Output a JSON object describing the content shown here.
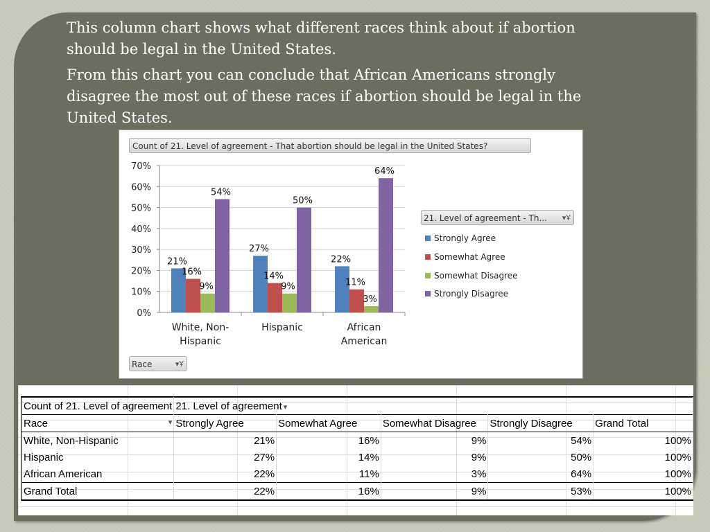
{
  "slide": {
    "paragraphs": [
      "This column chart shows what different races think about if abortion should be legal in the United States.",
      "From this chart you can conclude that African Americans strongly disagree the most out of these races if abortion should be legal in the United States."
    ]
  },
  "chart_data": {
    "type": "bar",
    "title": "Count of 21. Level of agreement - That abortion should be legal in the United States?",
    "legend_title": "21. Level of agreement - Th...",
    "axis_field_label": "Race",
    "categories": [
      "White, Non-Hispanic",
      "Hispanic",
      "African American"
    ],
    "category_lines": [
      [
        "White, Non-",
        "Hispanic"
      ],
      [
        "Hispanic"
      ],
      [
        "African",
        "American"
      ]
    ],
    "series": [
      {
        "name": "Strongly Agree",
        "values": [
          21,
          27,
          22
        ],
        "color": "#4f81bd"
      },
      {
        "name": "Somewhat Agree",
        "values": [
          16,
          14,
          11
        ],
        "color": "#c0504d"
      },
      {
        "name": "Somewhat Disagree",
        "values": [
          9,
          9,
          3
        ],
        "color": "#9bbb59"
      },
      {
        "name": "Strongly Disagree",
        "values": [
          54,
          50,
          64
        ],
        "color": "#8064a2"
      }
    ],
    "ylim": [
      0,
      70
    ],
    "y_ticks": [
      "0%",
      "10%",
      "20%",
      "30%",
      "40%",
      "50%",
      "60%",
      "70%"
    ],
    "value_suffix": "%",
    "grid": true,
    "legend_position": "right"
  },
  "pivot_table": {
    "filter_cell": "Count of 21. Level of agreement",
    "column_field": "21. Level of agreement",
    "row_field": "Race",
    "columns": [
      "Strongly Agree",
      "Somewhat Agree",
      "Somewhat Disagree",
      "Strongly Disagree",
      "Grand Total"
    ],
    "rows": [
      {
        "label": "White, Non-Hispanic",
        "values": [
          "21%",
          "16%",
          "9%",
          "54%",
          "100%"
        ]
      },
      {
        "label": "Hispanic",
        "values": [
          "27%",
          "14%",
          "9%",
          "50%",
          "100%"
        ]
      },
      {
        "label": "African American",
        "values": [
          "22%",
          "11%",
          "3%",
          "64%",
          "100%"
        ]
      },
      {
        "label": "Grand Total",
        "values": [
          "22%",
          "16%",
          "9%",
          "53%",
          "100%"
        ]
      }
    ]
  }
}
